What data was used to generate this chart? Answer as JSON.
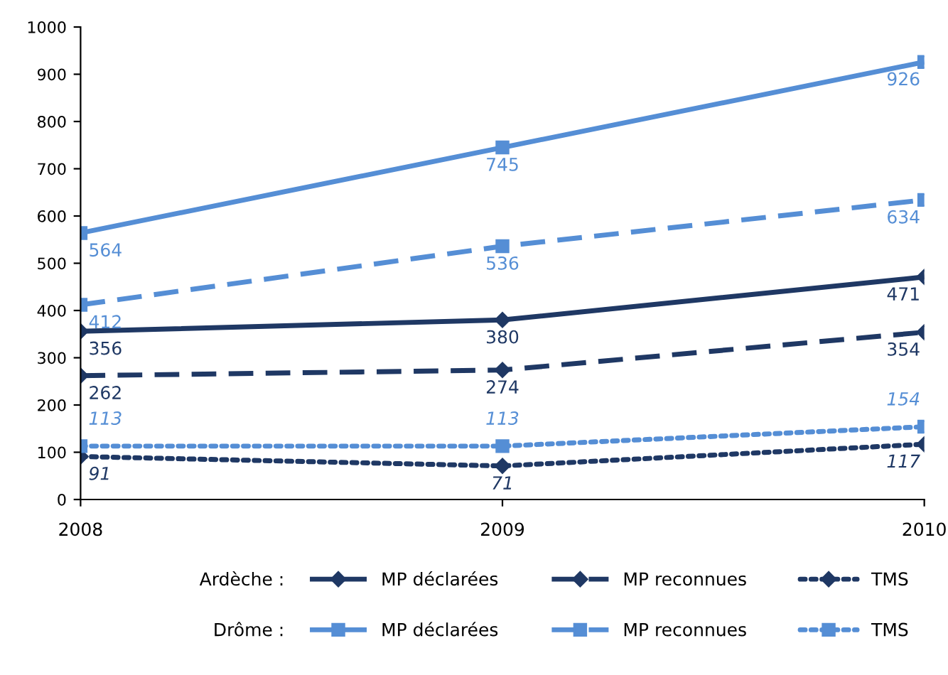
{
  "chart_data": {
    "type": "line",
    "x": [
      2008,
      2009,
      2010
    ],
    "xlim": [
      2008,
      2010
    ],
    "xticks": [
      2008,
      2009,
      2010
    ],
    "ylim": [
      0,
      1000
    ],
    "yticks": [
      0,
      100,
      200,
      300,
      400,
      500,
      600,
      700,
      800,
      900,
      1000
    ],
    "grid": false,
    "legend": "bottom",
    "data_labels": true,
    "annotations": [
      "Ardèche :",
      "Drôme :"
    ],
    "series": [
      {
        "name": "MP déclarées",
        "color": "#1f3864",
        "marker": "diamond",
        "line_style": "solid",
        "values": [
          356,
          380,
          471
        ]
      },
      {
        "name": "MP reconnues",
        "color": "#1f3864",
        "marker": "diamond",
        "line_style": "dashed",
        "values": [
          262,
          274,
          354
        ]
      },
      {
        "name": "TMS",
        "color": "#1f3864",
        "marker": "diamond",
        "line_style": "dotted",
        "values": [
          91,
          71,
          117
        ]
      },
      {
        "name": "MP déclarées",
        "color": "#558ed5",
        "marker": "square",
        "line_style": "solid",
        "values": [
          564,
          745,
          926
        ]
      },
      {
        "name": "MP reconnues",
        "color": "#558ed5",
        "marker": "square",
        "line_style": "dashed",
        "values": [
          412,
          536,
          634
        ]
      },
      {
        "name": "TMS",
        "color": "#558ed5",
        "marker": "square",
        "line_style": "dotted",
        "values": [
          113,
          113,
          154
        ]
      }
    ]
  }
}
